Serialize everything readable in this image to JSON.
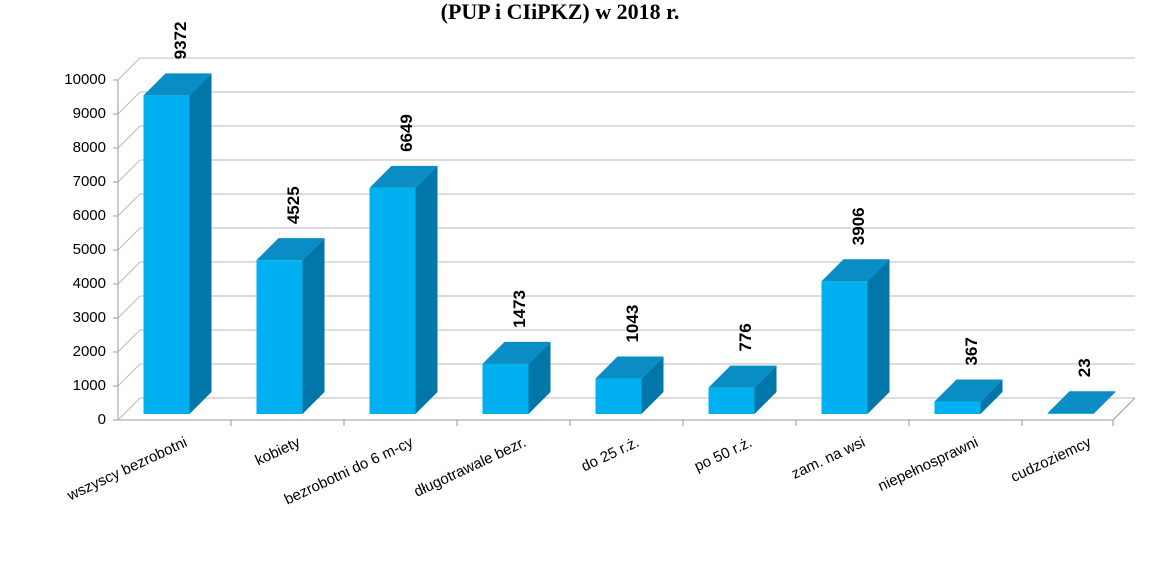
{
  "chart_data": {
    "type": "bar3d",
    "title": "(PUP i CIiPKZ) w 2018 r.",
    "categories": [
      "wszyscy bezrobotni",
      "kobiety",
      "bezrobotni do 6 m-cy",
      "długotrawale bezr.",
      "do 25 r.ż.",
      "po 50 r.ż.",
      "zam. na wsi",
      "niepełnosprawni",
      "cudzoziemcy"
    ],
    "values": [
      9372,
      4525,
      6649,
      1473,
      1043,
      776,
      3906,
      367,
      23
    ],
    "color": "#00b0f0",
    "ylim": [
      0,
      10000
    ],
    "yticks": [
      0,
      1000,
      2000,
      3000,
      4000,
      5000,
      6000,
      7000,
      8000,
      9000,
      10000
    ],
    "grid": true
  }
}
